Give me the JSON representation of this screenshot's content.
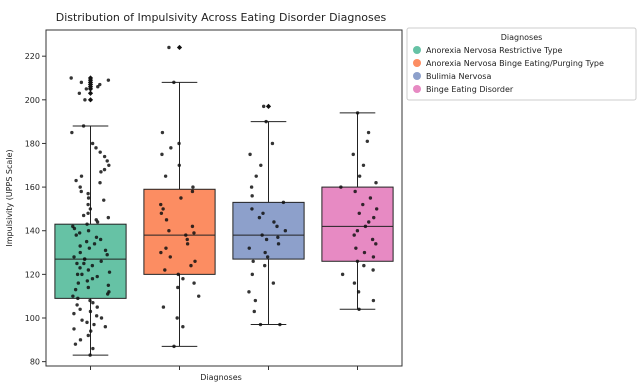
{
  "chart_data": {
    "type": "box",
    "title": "Distribution of Impulsivity Across Eating Disorder Diagnoses",
    "xlabel": "Diagnoses",
    "ylabel": "Impulsivity (UPPS Scale)",
    "ylim": [
      78,
      232
    ],
    "yticks": [
      80,
      100,
      120,
      140,
      160,
      180,
      200,
      220
    ],
    "grid": false,
    "legend": {
      "title": "Diagnoses",
      "placement": "outside-right-top"
    },
    "series": [
      {
        "name": "Anorexia Nervosa Restrictive Type",
        "color": "#66c2a5",
        "q1": 109,
        "median": 127,
        "q3": 143,
        "whisker_low": 83,
        "whisker_high": 188,
        "outliers": [
          200,
          203,
          205,
          206,
          207,
          208,
          209,
          210
        ]
      },
      {
        "name": "Anorexia Nervosa Binge Eating/Purging Type",
        "color": "#fc8d62",
        "q1": 120,
        "median": 138,
        "q3": 159,
        "whisker_low": 87,
        "whisker_high": 208,
        "outliers": [
          224
        ]
      },
      {
        "name": "Bulimia Nervosa",
        "color": "#8da0cb",
        "q1": 127,
        "median": 138,
        "q3": 153,
        "whisker_low": 97,
        "whisker_high": 190,
        "outliers": [
          197
        ]
      },
      {
        "name": "Binge Eating Disorder",
        "color": "#e78ac3",
        "q1": 126,
        "median": 142,
        "q3": 160,
        "whisker_low": 104,
        "whisker_high": 194,
        "outliers": []
      }
    ],
    "points": [
      [
        83,
        86,
        88,
        90,
        92,
        94,
        95,
        96,
        97,
        98,
        99,
        100,
        101,
        102,
        103,
        104,
        105,
        106,
        107,
        108,
        109,
        110,
        111,
        112,
        113,
        114,
        115,
        116,
        117,
        118,
        119,
        120,
        120,
        121,
        122,
        123,
        124,
        125,
        125,
        126,
        127,
        127,
        128,
        129,
        130,
        131,
        132,
        133,
        134,
        135,
        136,
        137,
        138,
        139,
        140,
        141,
        142,
        143,
        144,
        145,
        146,
        147,
        148,
        150,
        152,
        154,
        155,
        157,
        158,
        160,
        162,
        163,
        165,
        167,
        168,
        170,
        172,
        174,
        176,
        178,
        180,
        185,
        188,
        200,
        203,
        205,
        206,
        207,
        208,
        209,
        210
      ],
      [
        87,
        96,
        100,
        105,
        110,
        114,
        116,
        118,
        120,
        122,
        124,
        126,
        128,
        130,
        132,
        134,
        136,
        138,
        139,
        140,
        142,
        145,
        148,
        150,
        152,
        155,
        158,
        160,
        165,
        170,
        175,
        178,
        180,
        185,
        208,
        224
      ],
      [
        97,
        97,
        103,
        108,
        112,
        116,
        120,
        124,
        126,
        128,
        130,
        132,
        134,
        136,
        137,
        138,
        140,
        142,
        144,
        146,
        148,
        150,
        153,
        156,
        160,
        165,
        170,
        175,
        180,
        190,
        197
      ],
      [
        104,
        108,
        112,
        116,
        120,
        122,
        124,
        126,
        128,
        130,
        132,
        134,
        136,
        138,
        140,
        142,
        144,
        146,
        148,
        150,
        152,
        155,
        158,
        160,
        162,
        165,
        170,
        175,
        181,
        185,
        194
      ]
    ]
  }
}
